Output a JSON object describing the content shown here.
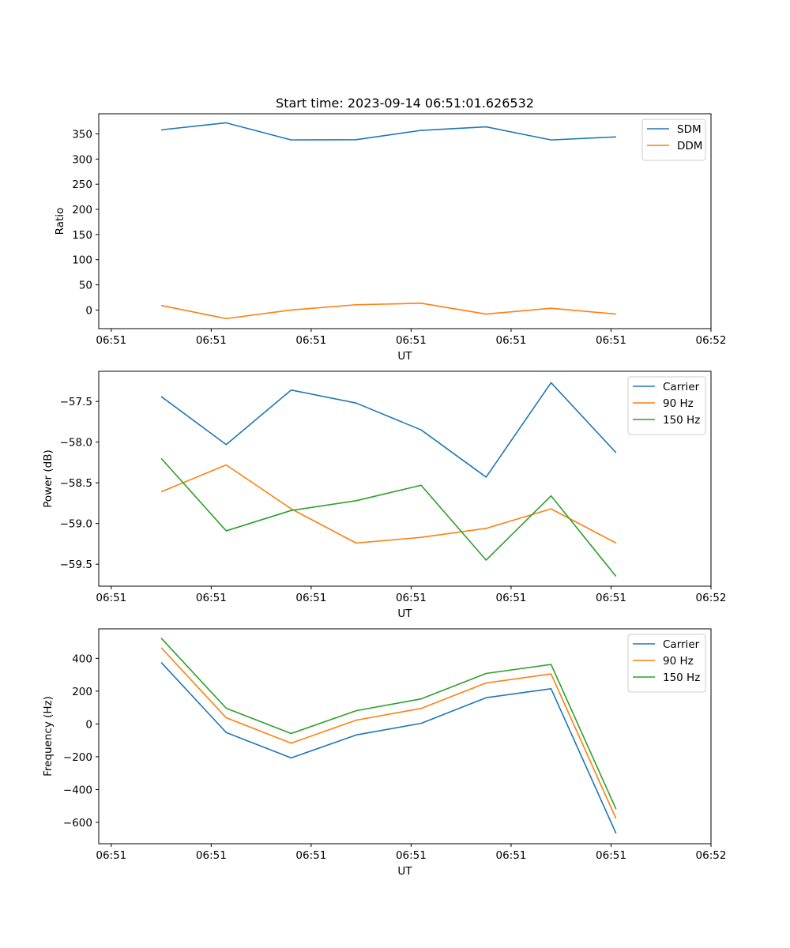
{
  "figure": {
    "title": "Start time: 2023-09-14 06:51:01.626532",
    "colors": {
      "blue": "#1f77b4",
      "orange": "#ff7f0e",
      "green": "#2ca02c"
    }
  },
  "chart_data": [
    {
      "type": "line",
      "title": "Start time: 2023-09-14 06:51:01.626532",
      "xlabel": "UT",
      "ylabel": "Ratio",
      "x": [
        0.5,
        1.15,
        1.8,
        2.45,
        3.1,
        3.75,
        4.4,
        5.05
      ],
      "xlim": [
        -0.125,
        6.0
      ],
      "ylim": [
        -37,
        390
      ],
      "xticks": [
        0,
        1,
        2,
        3,
        4,
        5,
        6
      ],
      "xticklabels": [
        "06:51",
        "06:51",
        "06:51",
        "06:51",
        "06:51",
        "06:51",
        "06:52"
      ],
      "yticks": [
        0,
        50,
        100,
        150,
        200,
        250,
        300,
        350
      ],
      "yticklabels": [
        "0",
        "50",
        "100",
        "150",
        "200",
        "250",
        "300",
        "350"
      ],
      "legend_position": "top-right",
      "series": [
        {
          "name": "SDM",
          "color": "#1f77b4",
          "values": [
            358,
            372,
            338,
            338.5,
            357,
            364,
            338,
            344
          ]
        },
        {
          "name": "DDM",
          "color": "#ff7f0e",
          "values": [
            9,
            -17,
            0,
            10.5,
            13.5,
            -8,
            3.5,
            -8
          ]
        }
      ]
    },
    {
      "type": "line",
      "title": "",
      "xlabel": "UT",
      "ylabel": "Power (dB)",
      "x": [
        0.5,
        1.15,
        1.8,
        2.45,
        3.1,
        3.75,
        4.4,
        5.05
      ],
      "xlim": [
        -0.125,
        6.0
      ],
      "ylim": [
        -59.77,
        -57.13
      ],
      "xticks": [
        0,
        1,
        2,
        3,
        4,
        5,
        6
      ],
      "xticklabels": [
        "06:51",
        "06:51",
        "06:51",
        "06:51",
        "06:51",
        "06:51",
        "06:52"
      ],
      "yticks": [
        -59.5,
        -59.0,
        -58.5,
        -58.0,
        -57.5
      ],
      "yticklabels": [
        "−59.5",
        "−59.0",
        "−58.5",
        "−58.0",
        "−57.5"
      ],
      "legend_position": "top-right",
      "series": [
        {
          "name": "Carrier",
          "color": "#1f77b4",
          "values": [
            -57.44,
            -58.03,
            -57.36,
            -57.52,
            -57.85,
            -58.43,
            -57.27,
            -58.13
          ]
        },
        {
          "name": "90 Hz",
          "color": "#ff7f0e",
          "values": [
            -58.61,
            -58.28,
            -58.82,
            -59.24,
            -59.17,
            -59.06,
            -58.82,
            -59.24
          ]
        },
        {
          "name": "150 Hz",
          "color": "#2ca02c",
          "values": [
            -58.2,
            -59.09,
            -58.84,
            -58.72,
            -58.53,
            -59.45,
            -58.66,
            -59.65
          ]
        }
      ]
    },
    {
      "type": "line",
      "title": "",
      "xlabel": "UT",
      "ylabel": "Frequency (Hz)",
      "x": [
        0.5,
        1.15,
        1.8,
        2.45,
        3.1,
        3.75,
        4.4,
        5.05
      ],
      "xlim": [
        -0.125,
        6.0
      ],
      "ylim": [
        -730,
        580
      ],
      "xticks": [
        0,
        1,
        2,
        3,
        4,
        5,
        6
      ],
      "xticklabels": [
        "06:51",
        "06:51",
        "06:51",
        "06:51",
        "06:51",
        "06:51",
        "06:52"
      ],
      "yticks": [
        -600,
        -400,
        -200,
        0,
        200,
        400
      ],
      "yticklabels": [
        "−600",
        "−400",
        "−200",
        "0",
        "200",
        "400"
      ],
      "legend_position": "top-right",
      "series": [
        {
          "name": "Carrier",
          "color": "#1f77b4",
          "values": [
            375,
            -52,
            -207,
            -67,
            4,
            160,
            215,
            -667
          ]
        },
        {
          "name": "90 Hz",
          "color": "#ff7f0e",
          "values": [
            465,
            38,
            -117,
            23,
            95,
            250,
            305,
            -577
          ]
        },
        {
          "name": "150 Hz",
          "color": "#2ca02c",
          "values": [
            523,
            96,
            -58,
            81,
            153,
            308,
            363,
            -519
          ]
        }
      ]
    }
  ]
}
